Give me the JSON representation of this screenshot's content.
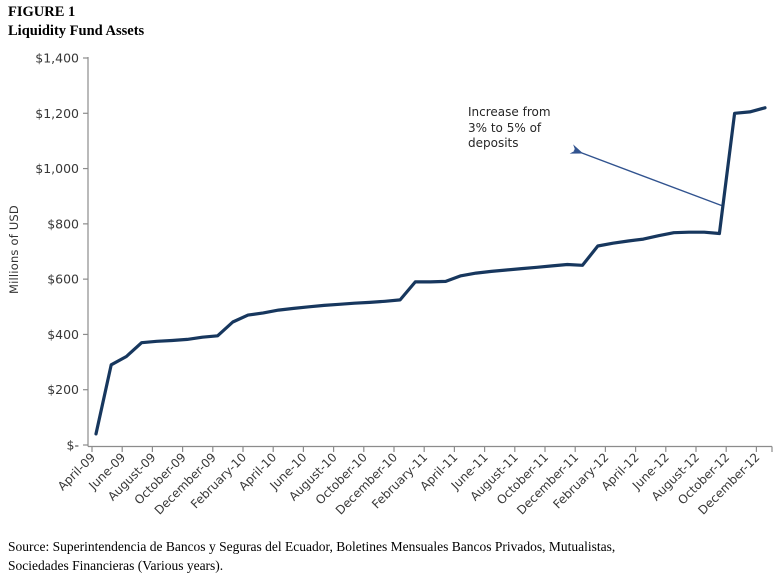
{
  "figure": {
    "label": "FIGURE 1",
    "title": "Liquidity Fund Assets"
  },
  "chart_data": {
    "type": "line",
    "title": "Liquidity Fund Assets",
    "xlabel": "",
    "ylabel": "Millions of USD",
    "ylim": [
      0,
      1400
    ],
    "grid": "off",
    "legend": "none",
    "line_color": "#17375E",
    "axis_color": "#8C8C8C",
    "categories": [
      "April-09",
      "May-09",
      "June-09",
      "July-09",
      "August-09",
      "September-09",
      "October-09",
      "November-09",
      "December-09",
      "January-10",
      "February-10",
      "March-10",
      "April-10",
      "May-10",
      "June-10",
      "July-10",
      "August-10",
      "September-10",
      "October-10",
      "November-10",
      "December-10",
      "January-11",
      "February-11",
      "March-11",
      "April-11",
      "May-11",
      "June-11",
      "July-11",
      "August-11",
      "September-11",
      "October-11",
      "November-11",
      "December-11",
      "January-12",
      "February-12",
      "March-12",
      "April-12",
      "May-12",
      "June-12",
      "July-12",
      "August-12",
      "September-12",
      "October-12",
      "November-12",
      "December-12"
    ],
    "values": [
      40,
      290,
      320,
      370,
      375,
      378,
      382,
      390,
      395,
      445,
      470,
      478,
      488,
      494,
      500,
      505,
      509,
      513,
      516,
      520,
      525,
      590,
      590,
      592,
      612,
      622,
      628,
      633,
      638,
      643,
      648,
      653,
      650,
      720,
      730,
      738,
      745,
      757,
      768,
      770,
      770,
      765,
      1200,
      1205,
      1220
    ],
    "x_tick_label_interval": 2,
    "x_tick_labels": [
      "April-09",
      "June-09",
      "August-09",
      "October-09",
      "December-09",
      "February-10",
      "April-10",
      "June-10",
      "August-10",
      "October-10",
      "December-10",
      "February-11",
      "April-11",
      "June-11",
      "August-11",
      "October-11",
      "December-11",
      "February-12",
      "April-12",
      "June-12",
      "August-12",
      "October-12",
      "December-12"
    ],
    "y_tick_values": [
      0,
      200,
      400,
      600,
      800,
      1000,
      1200,
      1400
    ],
    "y_tick_labels": [
      "$-",
      "$200",
      "$400",
      "$600",
      "$800",
      "$1,000",
      "$1,200",
      "$1,400"
    ],
    "annotation": {
      "text": "Increase from\n3% to 5% of\ndeposits",
      "arrow_color": "#31538F"
    }
  },
  "source": {
    "text": "Source: Superintendencia de Bancos y Seguras del Ecuador, Boletines Mensuales Bancos Privados, Mutualistas,\nSociedades Financieras (Various years)."
  }
}
